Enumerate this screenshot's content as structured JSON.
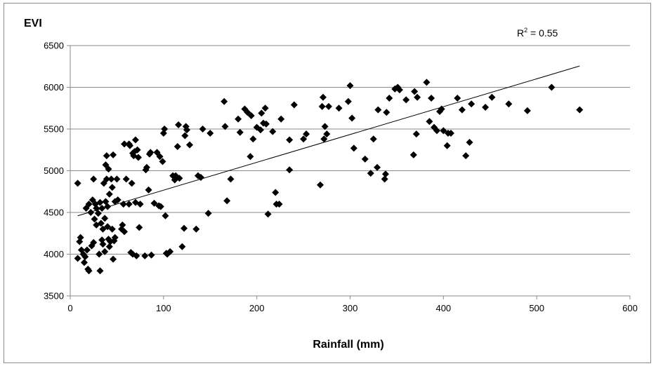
{
  "chart_data": {
    "type": "scatter",
    "title": "",
    "xlabel": "Rainfall (mm)",
    "ylabel": "EVI",
    "xlim": [
      0,
      600
    ],
    "ylim": [
      3500,
      6500
    ],
    "x_ticks": [
      "0",
      "100",
      "200",
      "300",
      "400",
      "500",
      "600"
    ],
    "y_ticks": [
      "3500",
      "4000",
      "4500",
      "5000",
      "5500",
      "6000",
      "6500"
    ],
    "grid": "horizontal",
    "legend": "none",
    "marker": "diamond",
    "marker_color": "#000000",
    "annotation": {
      "prefix": "R",
      "superscript": "2",
      "suffix": " = 0.55"
    },
    "trendline": {
      "x": [
        8,
        546
      ],
      "y": [
        4460,
        6255
      ]
    },
    "points": [
      [
        8,
        4850
      ],
      [
        8,
        3950
      ],
      [
        10,
        4150
      ],
      [
        11,
        4200
      ],
      [
        12,
        4050
      ],
      [
        14,
        4000
      ],
      [
        15,
        3900
      ],
      [
        16,
        3970
      ],
      [
        17,
        4550
      ],
      [
        18,
        4050
      ],
      [
        19,
        3820
      ],
      [
        20,
        4600
      ],
      [
        20,
        3800
      ],
      [
        22,
        4500
      ],
      [
        23,
        4100
      ],
      [
        24,
        4650
      ],
      [
        25,
        4140
      ],
      [
        25,
        4900
      ],
      [
        26,
        4420
      ],
      [
        27,
        4600
      ],
      [
        28,
        4550
      ],
      [
        28,
        4350
      ],
      [
        30,
        4490
      ],
      [
        31,
        4000
      ],
      [
        32,
        4620
      ],
      [
        32,
        3800
      ],
      [
        33,
        4370
      ],
      [
        34,
        4550
      ],
      [
        34,
        4170
      ],
      [
        35,
        4300
      ],
      [
        35,
        4120
      ],
      [
        36,
        4850
      ],
      [
        37,
        4430
      ],
      [
        37,
        4030
      ],
      [
        38,
        5070
      ],
      [
        38,
        4630
      ],
      [
        39,
        5180
      ],
      [
        39,
        4900
      ],
      [
        40,
        4570
      ],
      [
        40,
        4330
      ],
      [
        41,
        5020
      ],
      [
        41,
        4180
      ],
      [
        42,
        4720
      ],
      [
        42,
        4090
      ],
      [
        43,
        4150
      ],
      [
        44,
        4900
      ],
      [
        45,
        4300
      ],
      [
        45,
        4800
      ],
      [
        46,
        5190
      ],
      [
        46,
        3940
      ],
      [
        47,
        4160
      ],
      [
        48,
        4200
      ],
      [
        48,
        4630
      ],
      [
        50,
        4900
      ],
      [
        51,
        4650
      ],
      [
        55,
        4300
      ],
      [
        56,
        4350
      ],
      [
        57,
        4600
      ],
      [
        58,
        4270
      ],
      [
        58,
        5320
      ],
      [
        60,
        4900
      ],
      [
        63,
        5320
      ],
      [
        63,
        4600
      ],
      [
        64,
        5300
      ],
      [
        65,
        4020
      ],
      [
        66,
        4850
      ],
      [
        67,
        4000
      ],
      [
        67,
        5210
      ],
      [
        68,
        5180
      ],
      [
        69,
        5230
      ],
      [
        70,
        5370
      ],
      [
        70,
        4620
      ],
      [
        71,
        3980
      ],
      [
        72,
        5250
      ],
      [
        73,
        5160
      ],
      [
        74,
        4320
      ],
      [
        75,
        4600
      ],
      [
        80,
        3980
      ],
      [
        81,
        5010
      ],
      [
        82,
        5040
      ],
      [
        84,
        4770
      ],
      [
        85,
        5200
      ],
      [
        86,
        5220
      ],
      [
        87,
        3990
      ],
      [
        90,
        4610
      ],
      [
        93,
        5220
      ],
      [
        95,
        4580
      ],
      [
        96,
        5170
      ],
      [
        97,
        4570
      ],
      [
        99,
        5110
      ],
      [
        100,
        5450
      ],
      [
        101,
        5500
      ],
      [
        102,
        4460
      ],
      [
        103,
        4010
      ],
      [
        104,
        4000
      ],
      [
        107,
        4030
      ],
      [
        110,
        4940
      ],
      [
        112,
        4890
      ],
      [
        113,
        4940
      ],
      [
        115,
        5290
      ],
      [
        116,
        5550
      ],
      [
        117,
        4910
      ],
      [
        120,
        4090
      ],
      [
        122,
        4310
      ],
      [
        123,
        5420
      ],
      [
        124,
        5530
      ],
      [
        125,
        5490
      ],
      [
        128,
        5310
      ],
      [
        135,
        4300
      ],
      [
        137,
        4940
      ],
      [
        140,
        4920
      ],
      [
        142,
        5500
      ],
      [
        148,
        4490
      ],
      [
        150,
        5450
      ],
      [
        165,
        5830
      ],
      [
        166,
        5530
      ],
      [
        168,
        4640
      ],
      [
        172,
        4900
      ],
      [
        180,
        5620
      ],
      [
        182,
        5460
      ],
      [
        187,
        5740
      ],
      [
        190,
        5700
      ],
      [
        193,
        5170
      ],
      [
        194,
        5660
      ],
      [
        196,
        5380
      ],
      [
        200,
        5520
      ],
      [
        204,
        5490
      ],
      [
        205,
        5690
      ],
      [
        207,
        5570
      ],
      [
        209,
        5750
      ],
      [
        210,
        5560
      ],
      [
        212,
        4480
      ],
      [
        217,
        5470
      ],
      [
        220,
        4740
      ],
      [
        221,
        4600
      ],
      [
        224,
        4600
      ],
      [
        226,
        5620
      ],
      [
        235,
        5010
      ],
      [
        235,
        5370
      ],
      [
        240,
        5790
      ],
      [
        250,
        5380
      ],
      [
        253,
        5440
      ],
      [
        268,
        4830
      ],
      [
        270,
        5770
      ],
      [
        271,
        5880
      ],
      [
        272,
        5380
      ],
      [
        273,
        5530
      ],
      [
        275,
        5440
      ],
      [
        277,
        5770
      ],
      [
        288,
        5750
      ],
      [
        298,
        5830
      ],
      [
        300,
        6020
      ],
      [
        302,
        5630
      ],
      [
        304,
        5270
      ],
      [
        316,
        5140
      ],
      [
        322,
        4970
      ],
      [
        325,
        5380
      ],
      [
        329,
        5040
      ],
      [
        330,
        5730
      ],
      [
        337,
        4900
      ],
      [
        338,
        4960
      ],
      [
        339,
        5700
      ],
      [
        342,
        5870
      ],
      [
        348,
        5980
      ],
      [
        351,
        6000
      ],
      [
        353,
        5970
      ],
      [
        360,
        5850
      ],
      [
        368,
        5190
      ],
      [
        369,
        5950
      ],
      [
        371,
        5440
      ],
      [
        372,
        5880
      ],
      [
        382,
        6060
      ],
      [
        385,
        5590
      ],
      [
        387,
        5870
      ],
      [
        390,
        5520
      ],
      [
        393,
        5480
      ],
      [
        396,
        5710
      ],
      [
        398,
        5740
      ],
      [
        400,
        5480
      ],
      [
        404,
        5300
      ],
      [
        405,
        5450
      ],
      [
        408,
        5450
      ],
      [
        415,
        5870
      ],
      [
        420,
        5730
      ],
      [
        424,
        5180
      ],
      [
        428,
        5340
      ],
      [
        430,
        5800
      ],
      [
        445,
        5760
      ],
      [
        452,
        5880
      ],
      [
        470,
        5800
      ],
      [
        490,
        5720
      ],
      [
        516,
        6000
      ],
      [
        546,
        5730
      ]
    ]
  }
}
